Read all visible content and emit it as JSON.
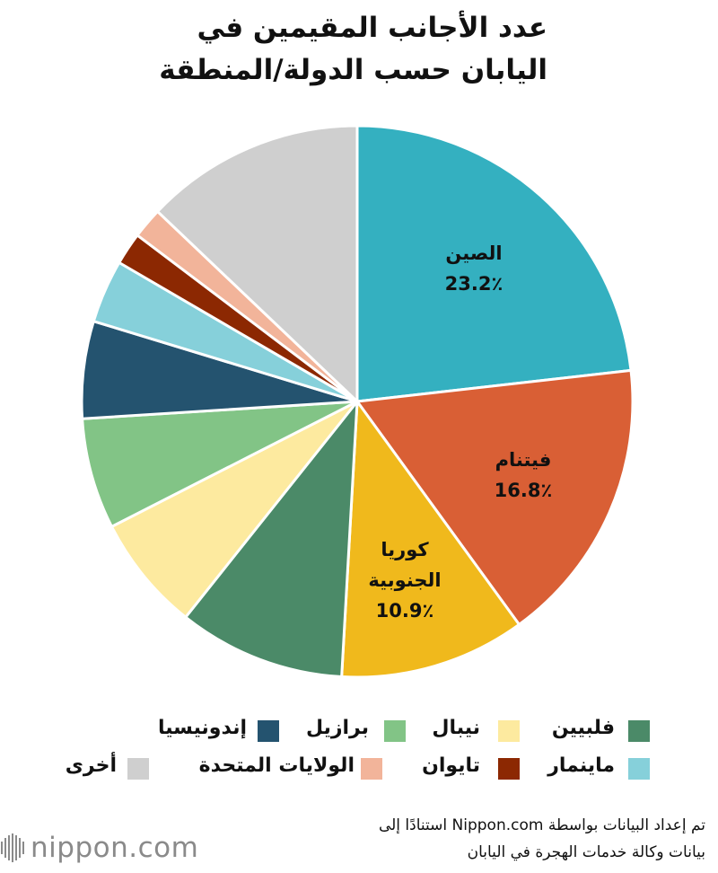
{
  "title_lines": [
    "عدد الأجانب المقيمين في",
    "اليابان حسب الدولة/المنطقة"
  ],
  "chart_data": {
    "type": "pie",
    "start_angle_deg": 0,
    "direction": "clockwise",
    "slices": [
      {
        "name": "الصين",
        "value": 23.2,
        "label_lines": [
          "الصين",
          "23.2٪"
        ],
        "color": "#34b0c0"
      },
      {
        "name": "فيتنام",
        "value": 16.8,
        "label_lines": [
          "فيتنام",
          "16.8٪"
        ],
        "color": "#d95f35"
      },
      {
        "name": "كوريا الجنوبية",
        "value": 10.9,
        "label_lines": [
          "كوريا",
          "الجنوبية",
          "10.9٪"
        ],
        "color": "#f0b91c"
      },
      {
        "name": "فلبيين",
        "value": 9.8,
        "color": "#4b8a68"
      },
      {
        "name": "نيبال",
        "value": 6.8,
        "color": "#fdea9f"
      },
      {
        "name": "برازيل",
        "value": 6.5,
        "color": "#82c486"
      },
      {
        "name": "إندونيسيا",
        "value": 5.7,
        "color": "#24536f"
      },
      {
        "name": "مانيمار",
        "value": 3.7,
        "color": "#86d0da"
      },
      {
        "name": "تايوان",
        "value": 1.9,
        "color": "#8c2802"
      },
      {
        "name": "الولايات المتحدة",
        "value": 1.8,
        "color": "#f2b49a"
      },
      {
        "name": "أخرى",
        "value": 12.9,
        "color": "#cfcfcf"
      }
    ]
  },
  "legend": {
    "row1": [
      {
        "name": "فلبيين",
        "color": "#4b8a68"
      },
      {
        "name": "نيبال",
        "color": "#fdea9f"
      },
      {
        "name": "برازيل",
        "color": "#82c486"
      },
      {
        "name": "إندونيسيا",
        "color": "#24536f"
      }
    ],
    "row2": [
      {
        "name": "ماينمار",
        "color": "#86d0da"
      },
      {
        "name": "تايوان",
        "color": "#8c2802"
      },
      {
        "name": "الولايات المتحدة",
        "color": "#f2b49a"
      },
      {
        "name": "أخرى",
        "color": "#cfcfcf"
      }
    ]
  },
  "source_lines": [
    "تم إعداد البيانات بواسطة Nippon.com استنادًا إلى",
    "بيانات وكالة خدمات الهجرة في اليابان"
  ],
  "brand": {
    "name": "nippon.com",
    "color": "#8a8a8a"
  }
}
